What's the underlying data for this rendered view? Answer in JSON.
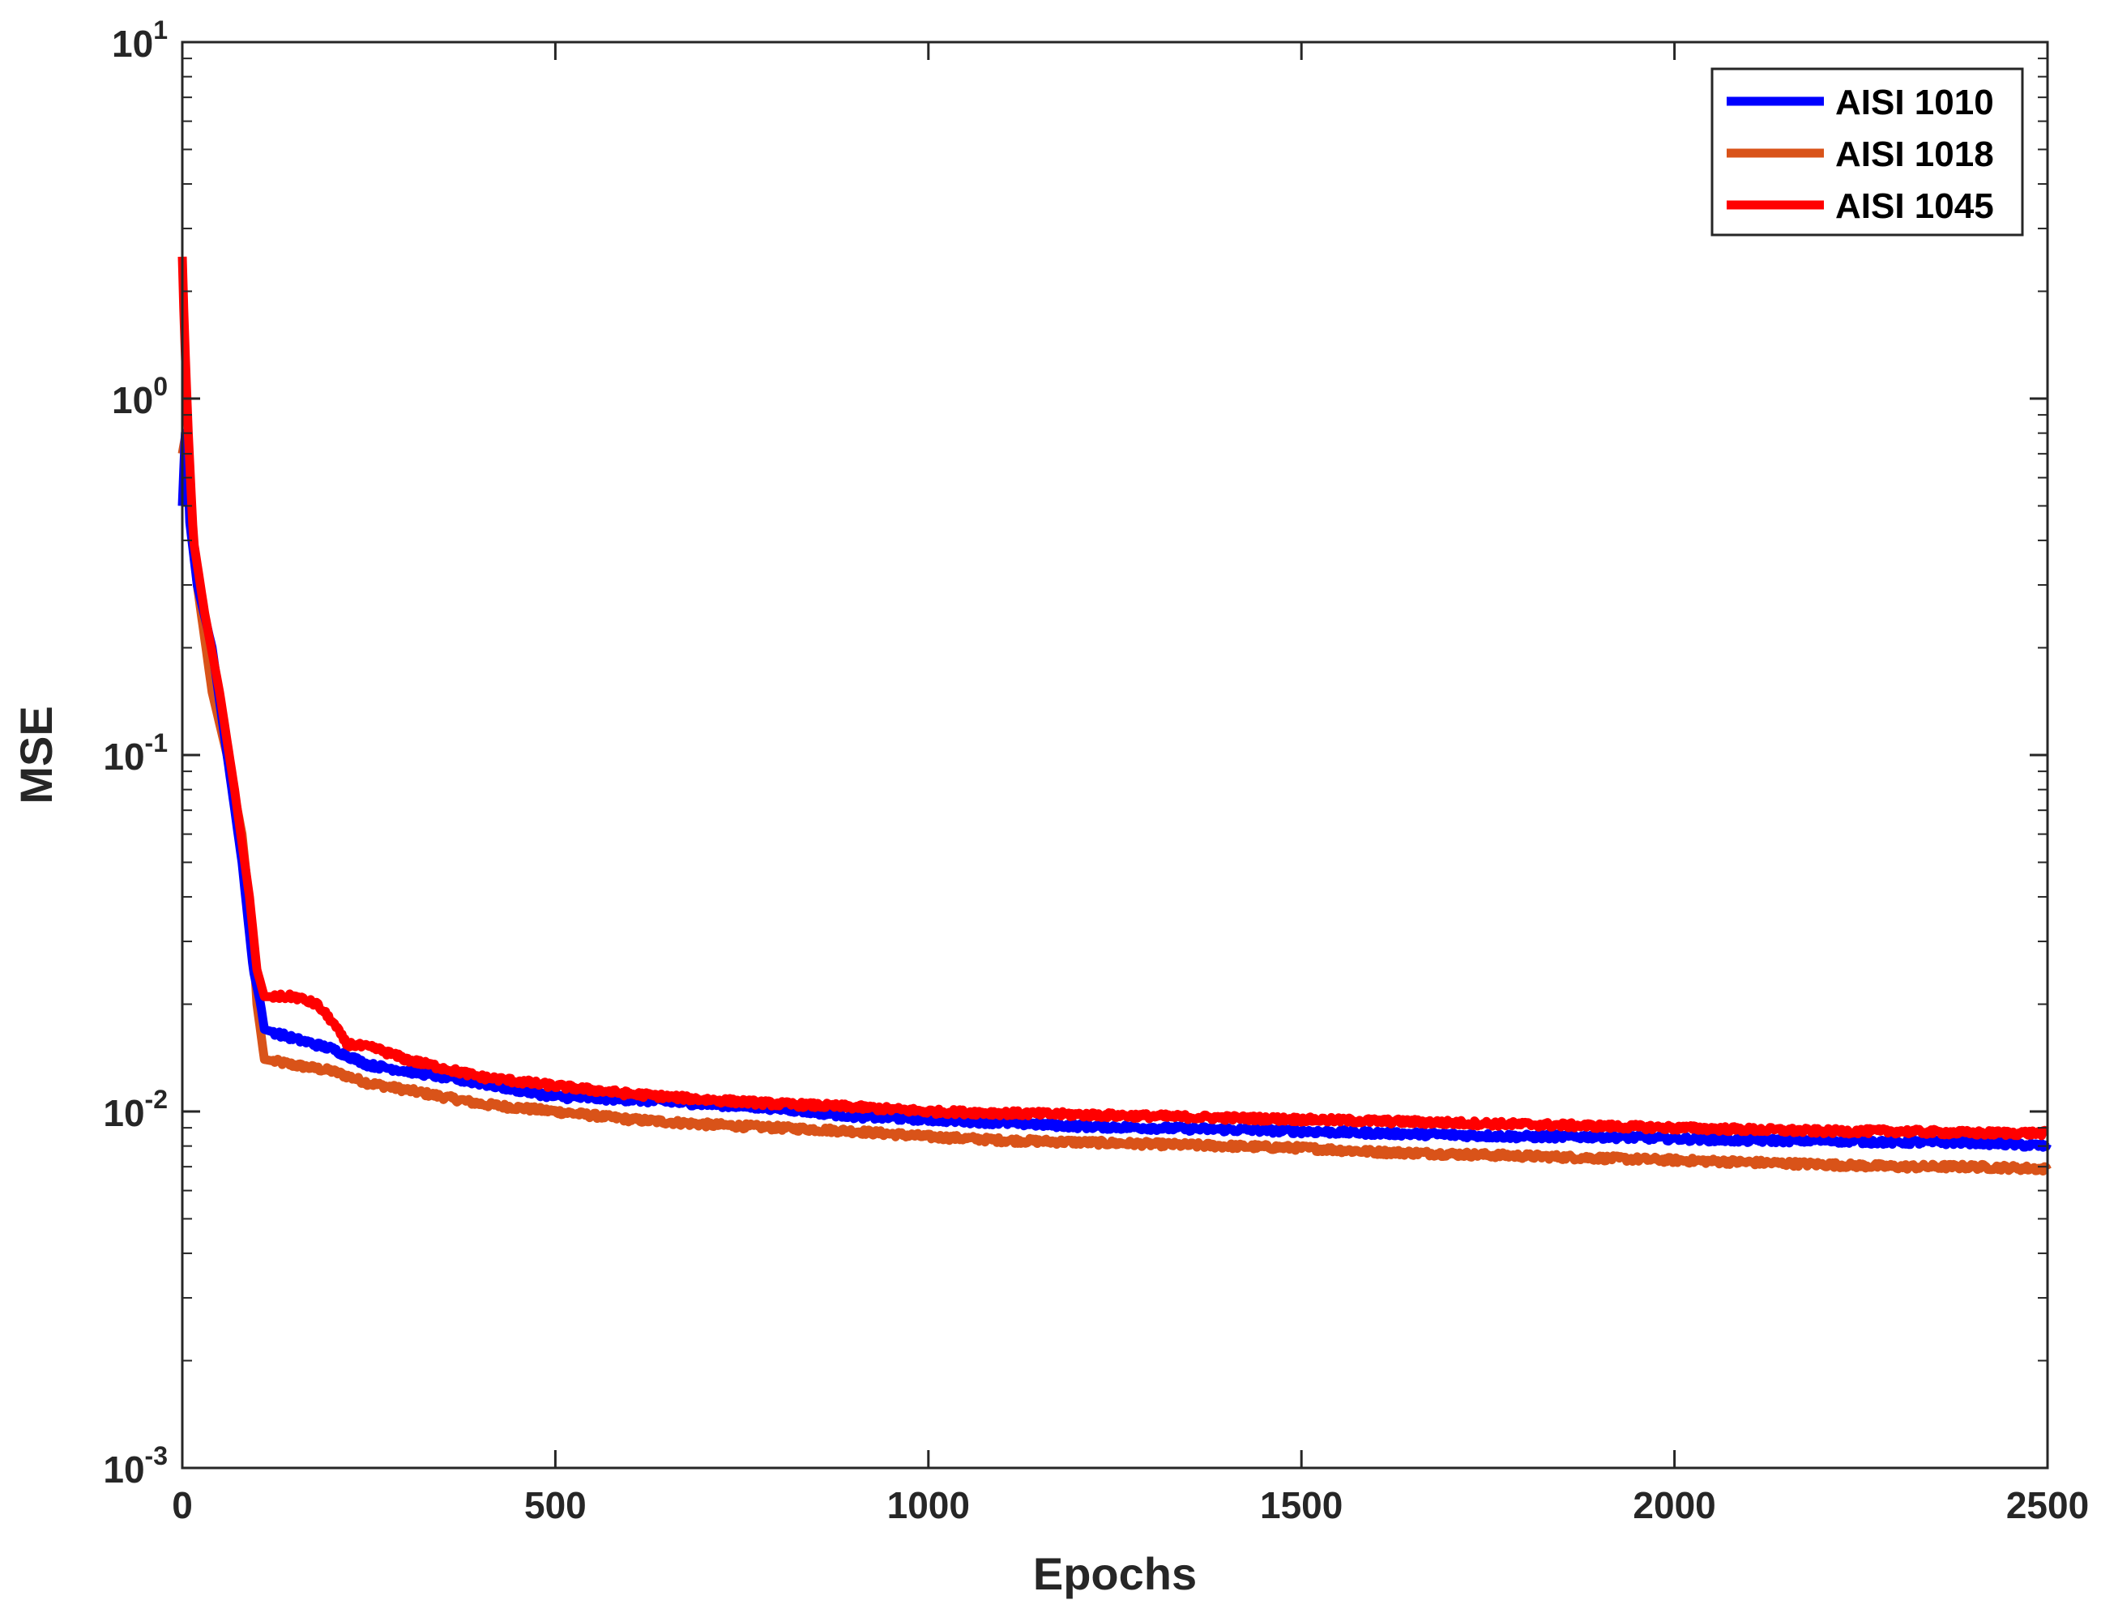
{
  "chart_data": {
    "type": "line",
    "xlabel": "Epochs",
    "ylabel": "MSE",
    "xlim": [
      0,
      2500
    ],
    "ylim": [
      0.001,
      10
    ],
    "y_scale": "log",
    "grid": false,
    "legend_position": "top-right",
    "x_ticks": [
      {
        "value": 0,
        "label": "0"
      },
      {
        "value": 500,
        "label": "500"
      },
      {
        "value": 1000,
        "label": "1000"
      },
      {
        "value": 1500,
        "label": "1500"
      },
      {
        "value": 2000,
        "label": "2000"
      },
      {
        "value": 2500,
        "label": "2500"
      }
    ],
    "y_ticks": [
      {
        "value": 0.001,
        "base": "10",
        "exp": "-3"
      },
      {
        "value": 0.01,
        "base": "10",
        "exp": "-2"
      },
      {
        "value": 0.1,
        "base": "10",
        "exp": "-1"
      },
      {
        "value": 1,
        "base": "10",
        "exp": "0"
      },
      {
        "value": 10,
        "base": "10",
        "exp": "1"
      }
    ],
    "series": [
      {
        "name": "AISI 1010",
        "color": "#0000ff",
        "points": [
          [
            0,
            0.5
          ],
          [
            5,
            0.9
          ],
          [
            10,
            0.45
          ],
          [
            20,
            0.3
          ],
          [
            40,
            0.2
          ],
          [
            60,
            0.1
          ],
          [
            80,
            0.05
          ],
          [
            95,
            0.025
          ],
          [
            105,
            0.02
          ],
          [
            110,
            0.017
          ],
          [
            150,
            0.016
          ],
          [
            200,
            0.015
          ],
          [
            250,
            0.0135
          ],
          [
            300,
            0.013
          ],
          [
            400,
            0.012
          ],
          [
            500,
            0.011
          ],
          [
            600,
            0.0108
          ],
          [
            700,
            0.0105
          ],
          [
            800,
            0.0102
          ],
          [
            900,
            0.0097
          ],
          [
            1000,
            0.0095
          ],
          [
            1100,
            0.0093
          ],
          [
            1200,
            0.0091
          ],
          [
            1300,
            0.009
          ],
          [
            1400,
            0.0089
          ],
          [
            1500,
            0.0088
          ],
          [
            1600,
            0.0087
          ],
          [
            1700,
            0.0086
          ],
          [
            1800,
            0.0085
          ],
          [
            1900,
            0.0085
          ],
          [
            2000,
            0.0084
          ],
          [
            2100,
            0.0083
          ],
          [
            2200,
            0.0083
          ],
          [
            2300,
            0.0082
          ],
          [
            2400,
            0.0082
          ],
          [
            2500,
            0.008
          ]
        ]
      },
      {
        "name": "AISI 1018",
        "color": "#d95319",
        "points": [
          [
            0,
            0.7
          ],
          [
            5,
            0.8
          ],
          [
            10,
            0.5
          ],
          [
            20,
            0.3
          ],
          [
            40,
            0.15
          ],
          [
            60,
            0.1
          ],
          [
            80,
            0.06
          ],
          [
            95,
            0.03
          ],
          [
            100,
            0.02
          ],
          [
            110,
            0.014
          ],
          [
            150,
            0.0135
          ],
          [
            200,
            0.013
          ],
          [
            250,
            0.012
          ],
          [
            300,
            0.0115
          ],
          [
            400,
            0.0105
          ],
          [
            500,
            0.01
          ],
          [
            600,
            0.0095
          ],
          [
            700,
            0.0092
          ],
          [
            800,
            0.009
          ],
          [
            900,
            0.0088
          ],
          [
            1000,
            0.0085
          ],
          [
            1100,
            0.0083
          ],
          [
            1200,
            0.0082
          ],
          [
            1300,
            0.0081
          ],
          [
            1400,
            0.008
          ],
          [
            1500,
            0.0079
          ],
          [
            1600,
            0.0077
          ],
          [
            1700,
            0.0076
          ],
          [
            1800,
            0.0075
          ],
          [
            1900,
            0.0074
          ],
          [
            2000,
            0.0073
          ],
          [
            2100,
            0.0072
          ],
          [
            2200,
            0.0071
          ],
          [
            2300,
            0.007
          ],
          [
            2400,
            0.007
          ],
          [
            2500,
            0.0069
          ]
        ]
      },
      {
        "name": "AISI 1045",
        "color": "#ff0000",
        "points": [
          [
            0,
            2.5
          ],
          [
            3,
            1.5
          ],
          [
            8,
            0.8
          ],
          [
            15,
            0.4
          ],
          [
            30,
            0.25
          ],
          [
            50,
            0.15
          ],
          [
            70,
            0.08
          ],
          [
            90,
            0.04
          ],
          [
            100,
            0.025
          ],
          [
            110,
            0.021
          ],
          [
            150,
            0.021
          ],
          [
            180,
            0.02
          ],
          [
            200,
            0.018
          ],
          [
            220,
            0.0155
          ],
          [
            260,
            0.015
          ],
          [
            300,
            0.014
          ],
          [
            400,
            0.0125
          ],
          [
            500,
            0.0118
          ],
          [
            600,
            0.0112
          ],
          [
            700,
            0.0108
          ],
          [
            800,
            0.0105
          ],
          [
            900,
            0.0103
          ],
          [
            1000,
            0.01
          ],
          [
            1100,
            0.0099
          ],
          [
            1200,
            0.0098
          ],
          [
            1300,
            0.0097
          ],
          [
            1400,
            0.0096
          ],
          [
            1500,
            0.0095
          ],
          [
            1600,
            0.0094
          ],
          [
            1700,
            0.0093
          ],
          [
            1800,
            0.0092
          ],
          [
            1900,
            0.0091
          ],
          [
            2000,
            0.009
          ],
          [
            2100,
            0.0089
          ],
          [
            2200,
            0.0088
          ],
          [
            2300,
            0.0088
          ],
          [
            2400,
            0.0087
          ],
          [
            2500,
            0.0087
          ]
        ]
      }
    ]
  }
}
